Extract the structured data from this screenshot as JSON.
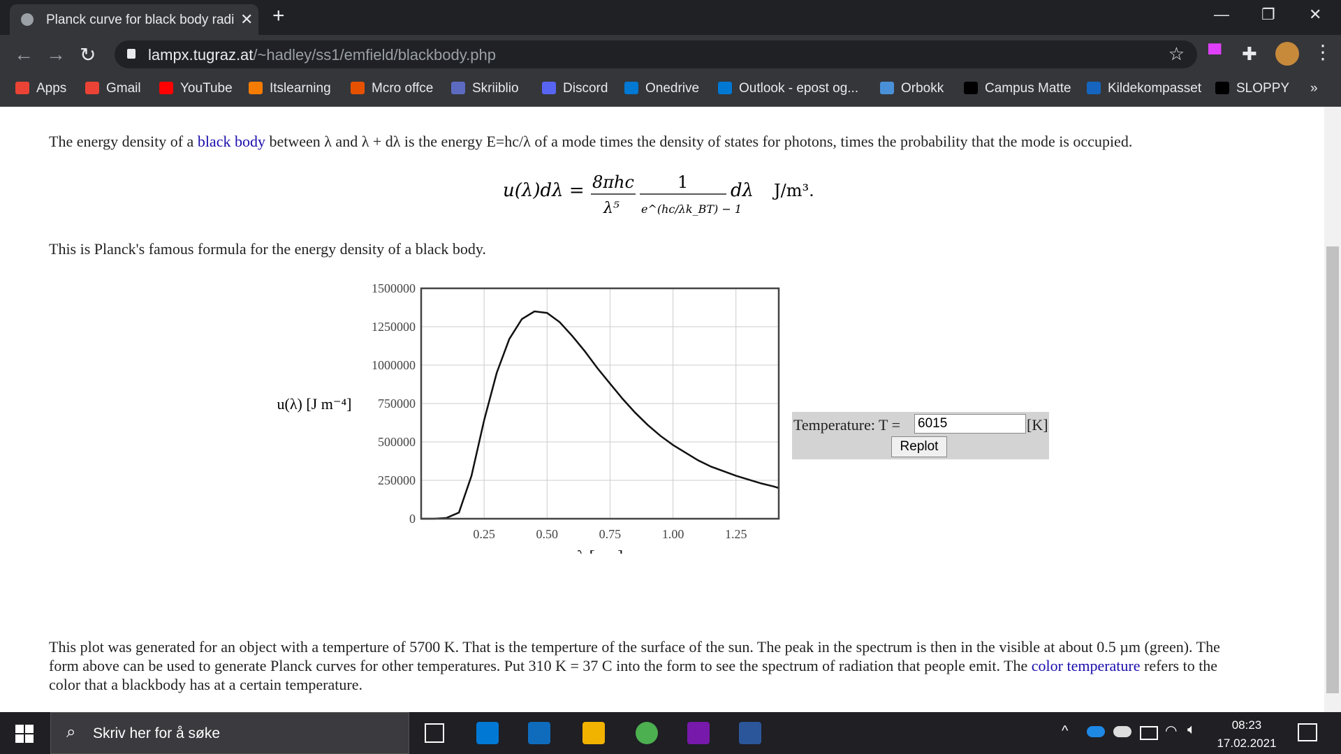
{
  "browser": {
    "tab_title": "Planck curve for black body radia",
    "new_tab": "+",
    "tab_close": "✕",
    "window_controls": {
      "minimize": "—",
      "restore": "❐",
      "close": "✕"
    },
    "url_host": "lampx.tugraz.at",
    "url_path": "/~hadley/ss1/emfield/blackbody.php",
    "bookmarks": [
      "Apps",
      "Gmail",
      "YouTube",
      "Itslearning",
      "Mcro offce",
      "Skriiblio",
      "Discord",
      "Onedrive",
      "Outlook - epost og...",
      "Orbokk",
      "Campus Matte",
      "Kildekompasset",
      "SLOPPY"
    ],
    "bookmark_colors": [
      "#ea4335",
      "#ea4335",
      "#ff0000",
      "#f57c00",
      "#e65100",
      "#5c6bc0",
      "#5865f2",
      "#0078d4",
      "#0078d4",
      "#4a90d9",
      "#000000",
      "#1565c0",
      "#000000"
    ],
    "bookmarks_overflow": "»"
  },
  "page": {
    "intro_pre": "The energy density of a ",
    "intro_link": "black body",
    "intro_post": " between λ and λ + dλ is the energy E=hc/λ of a mode times the density of states for photons, times the probability that the mode is occupied.",
    "formula_lhs": "u(λ)dλ =",
    "formula_num1": "8πhc",
    "formula_den1": "λ⁵",
    "formula_num2": "1",
    "formula_den2": "e^(hc/λk_BT) − 1",
    "formula_tail": "dλ",
    "formula_unit": "J/m³.",
    "famous": "This is Planck's famous formula for the energy density of a black body.",
    "form_label": "Temperature: T =",
    "form_value": "6015",
    "form_unit": "[K]",
    "replot_label": "Replot",
    "bottom_1": "This plot was generated for an object with a temperture of 5700 K. That is the temperture of the surface of the sun. The peak in the spectrum is then in the visible at about 0.5 µm (green). The form above can be used to generate Planck curves for other temperatures. Put 310 K = 37 C into the form to see the spectrum of radiation that people emit. The ",
    "bottom_link1": "color",
    "bottom_2": " ",
    "bottom_link2": "temperature",
    "bottom_3": " refers to the color that a blackbody has at a certain temperature."
  },
  "chart_data": {
    "type": "line",
    "xlabel": "λ [µm]",
    "ylabel": "u(λ) [J m⁻⁴]",
    "xlim": [
      0,
      1.42
    ],
    "ylim": [
      0,
      1500000
    ],
    "xticks": [
      0.25,
      0.5,
      0.75,
      1.0,
      1.25
    ],
    "xtick_labels": [
      "0.25",
      "0.50",
      "0.75",
      "1.00",
      "1.25"
    ],
    "yticks": [
      0,
      250000,
      500000,
      750000,
      1000000,
      1250000,
      1500000
    ],
    "ytick_labels": [
      "0",
      "250000",
      "500000",
      "750000",
      "1000000",
      "1250000",
      "1500000"
    ],
    "grid": true,
    "series": [
      {
        "x": [
          0.0,
          0.05,
          0.1,
          0.15,
          0.2,
          0.25,
          0.3,
          0.35,
          0.4,
          0.45,
          0.5,
          0.55,
          0.6,
          0.65,
          0.7,
          0.75,
          0.8,
          0.85,
          0.9,
          0.95,
          1.0,
          1.05,
          1.1,
          1.15,
          1.2,
          1.25,
          1.3,
          1.35,
          1.4,
          1.42
        ],
        "y": [
          0,
          0,
          5000,
          40000,
          280000,
          640000,
          950000,
          1170000,
          1300000,
          1350000,
          1340000,
          1280000,
          1190000,
          1090000,
          980000,
          880000,
          780000,
          690000,
          610000,
          540000,
          480000,
          430000,
          380000,
          340000,
          310000,
          280000,
          255000,
          230000,
          210000,
          200000
        ]
      }
    ]
  },
  "taskbar": {
    "search_placeholder": "Skriv her for å søke",
    "time": "08:23",
    "date": "17.02.2021"
  }
}
